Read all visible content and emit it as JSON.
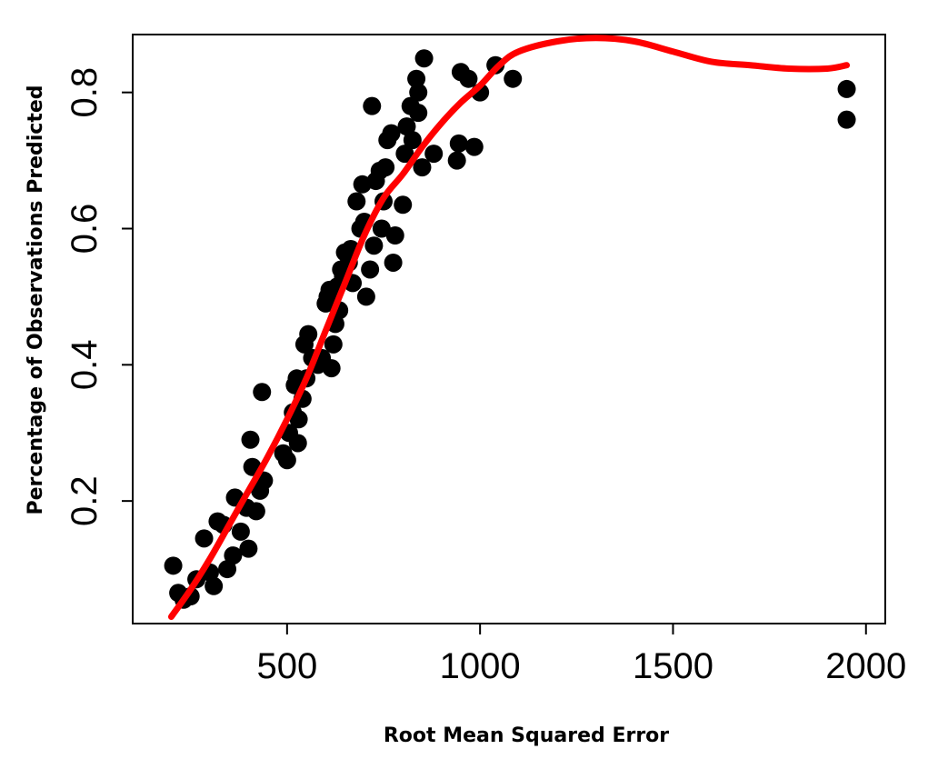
{
  "chart_data": {
    "type": "scatter",
    "xlabel": "Root Mean Squared Error",
    "ylabel": "Percentage of Observations Predicted",
    "xlim": [
      100,
      2050
    ],
    "ylim": [
      0.02,
      0.885
    ],
    "x_ticks": [
      {
        "value": 500,
        "label": "500"
      },
      {
        "value": 1000,
        "label": "1000"
      },
      {
        "value": 1500,
        "label": "1500"
      },
      {
        "value": 2000,
        "label": "2000"
      }
    ],
    "y_ticks": [
      {
        "value": 0.2,
        "label": "0.2"
      },
      {
        "value": 0.4,
        "label": "0.4"
      },
      {
        "value": 0.6,
        "label": "0.6"
      },
      {
        "value": 0.8,
        "label": "0.8"
      }
    ],
    "grid": false,
    "legend": "none",
    "colors": {
      "points": "#000000",
      "smooth_line": "#ff0000"
    },
    "series": [
      {
        "kind": "points",
        "x": [
          205,
          218,
          232,
          250,
          265,
          285,
          300,
          310,
          320,
          335,
          345,
          360,
          365,
          380,
          395,
          400,
          405,
          410,
          420,
          430,
          435,
          440,
          490,
          500,
          505,
          515,
          520,
          525,
          528,
          530,
          540,
          545,
          550,
          555,
          565,
          580,
          590,
          600,
          605,
          610,
          615,
          620,
          625,
          630,
          635,
          640,
          645,
          650,
          660,
          665,
          670,
          680,
          690,
          695,
          700,
          705,
          715,
          720,
          725,
          730,
          740,
          745,
          750,
          755,
          760,
          770,
          775,
          780,
          800,
          805,
          810,
          820,
          825,
          835,
          840,
          850,
          855,
          880,
          940,
          945,
          950,
          970,
          985,
          1000,
          1040,
          1085,
          1950
        ],
        "y": [
          0.105,
          0.065,
          0.055,
          0.06,
          0.085,
          0.145,
          0.095,
          0.075,
          0.17,
          0.165,
          0.1,
          0.12,
          0.205,
          0.155,
          0.19,
          0.13,
          0.29,
          0.25,
          0.185,
          0.215,
          0.36,
          0.23,
          0.27,
          0.26,
          0.3,
          0.33,
          0.37,
          0.38,
          0.285,
          0.32,
          0.35,
          0.43,
          0.38,
          0.445,
          0.41,
          0.4,
          0.41,
          0.49,
          0.5,
          0.51,
          0.395,
          0.43,
          0.46,
          0.515,
          0.48,
          0.54,
          0.53,
          0.565,
          0.55,
          0.57,
          0.52,
          0.64,
          0.6,
          0.665,
          0.61,
          0.5,
          0.54,
          0.78,
          0.575,
          0.67,
          0.685,
          0.6,
          0.64,
          0.69,
          0.73,
          0.74,
          0.55,
          0.59,
          0.635,
          0.71,
          0.75,
          0.78,
          0.73,
          0.82,
          0.77,
          0.69,
          0.85,
          0.71,
          0.7,
          0.725,
          0.83,
          0.82,
          0.72,
          0.8,
          0.84,
          0.82,
          0.76
        ],
        "x2": [
          840,
          1950
        ],
        "y2": [
          0.8,
          0.805
        ]
      },
      {
        "kind": "smooth_line",
        "x": [
          200,
          250,
          300,
          350,
          400,
          450,
          500,
          550,
          600,
          650,
          700,
          750,
          800,
          850,
          900,
          950,
          1000,
          1050,
          1100,
          1200,
          1300,
          1400,
          1500,
          1600,
          1700,
          1800,
          1900,
          1950
        ],
        "y": [
          0.03,
          0.07,
          0.115,
          0.165,
          0.215,
          0.265,
          0.32,
          0.38,
          0.45,
          0.52,
          0.59,
          0.645,
          0.68,
          0.72,
          0.755,
          0.785,
          0.81,
          0.84,
          0.86,
          0.875,
          0.88,
          0.875,
          0.86,
          0.845,
          0.84,
          0.835,
          0.835,
          0.84
        ]
      }
    ]
  }
}
